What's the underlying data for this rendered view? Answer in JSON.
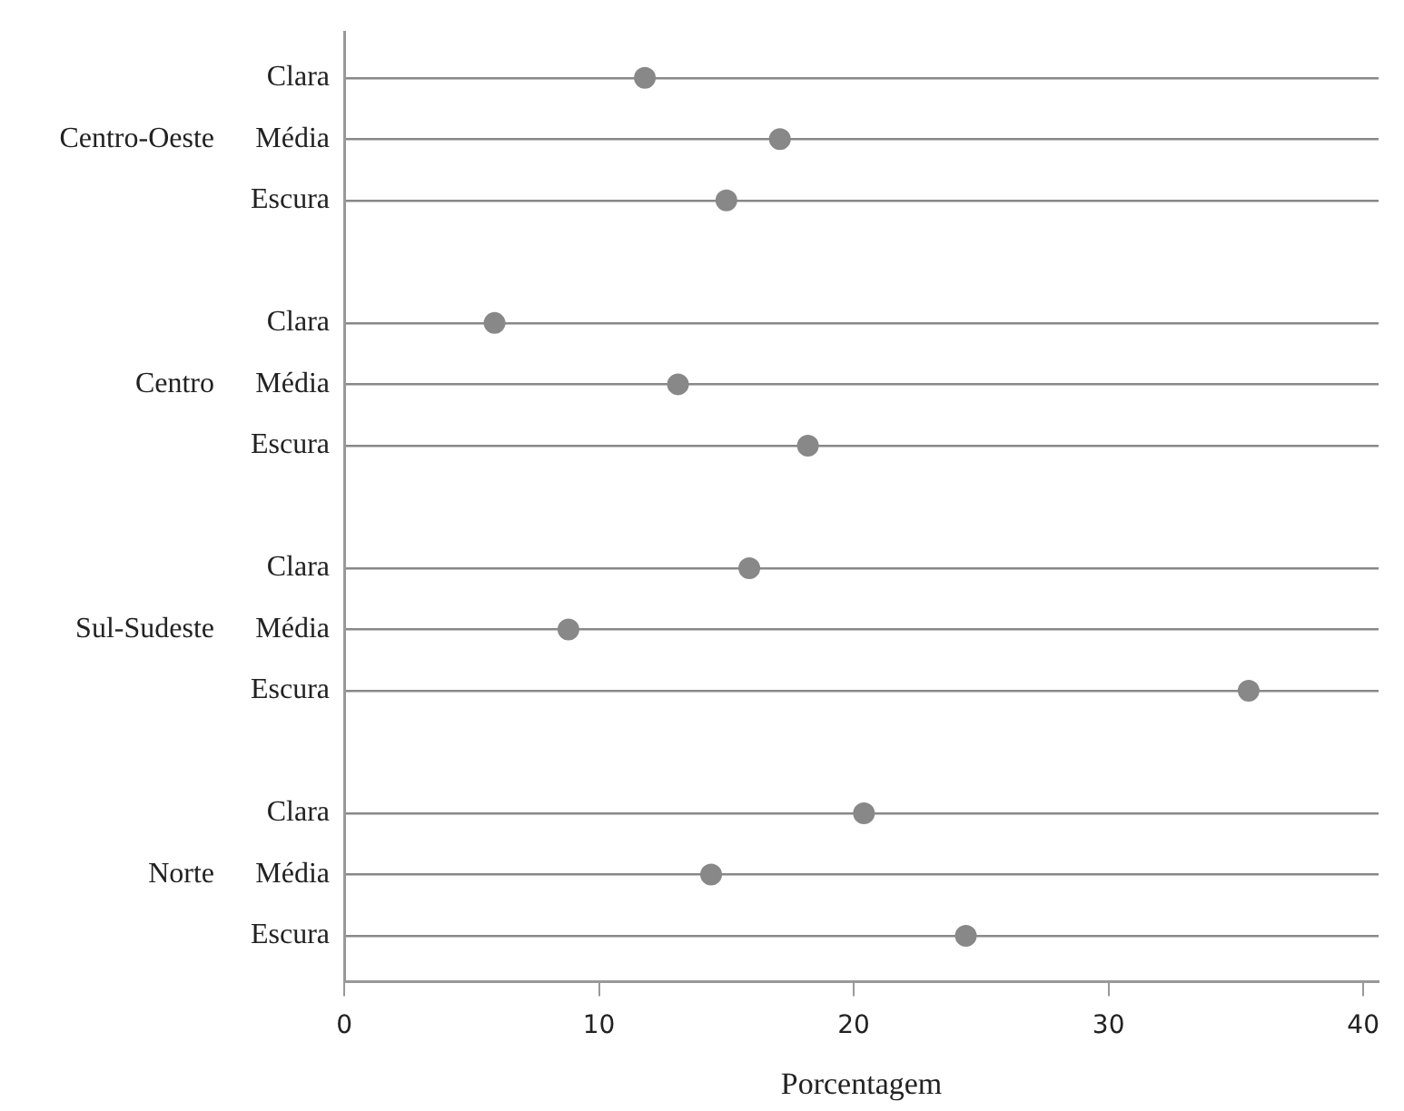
{
  "chart_data": {
    "type": "scatter",
    "orientation": "horizontal",
    "categories": [
      "Clara",
      "Média",
      "Escura",
      null,
      "Clara",
      "Média",
      "Escura",
      null,
      "Clara",
      "Média",
      "Escura",
      null,
      "Clara",
      "Média",
      "Escura"
    ],
    "values": [
      11.8,
      17.1,
      15.0,
      null,
      5.9,
      13.1,
      18.2,
      null,
      15.9,
      8.8,
      35.5,
      null,
      20.4,
      14.4,
      24.4
    ],
    "color": "#888888",
    "annotations": [
      "Centro-Oeste",
      "Centro",
      "Sul-Sudeste",
      "Norte"
    ],
    "xlabel": "Porcentagem",
    "xlim": [
      0,
      40.6
    ],
    "xticks": [
      0,
      10,
      20,
      30,
      40
    ],
    "grid": "y",
    "legend": false,
    "marker": "circle"
  }
}
